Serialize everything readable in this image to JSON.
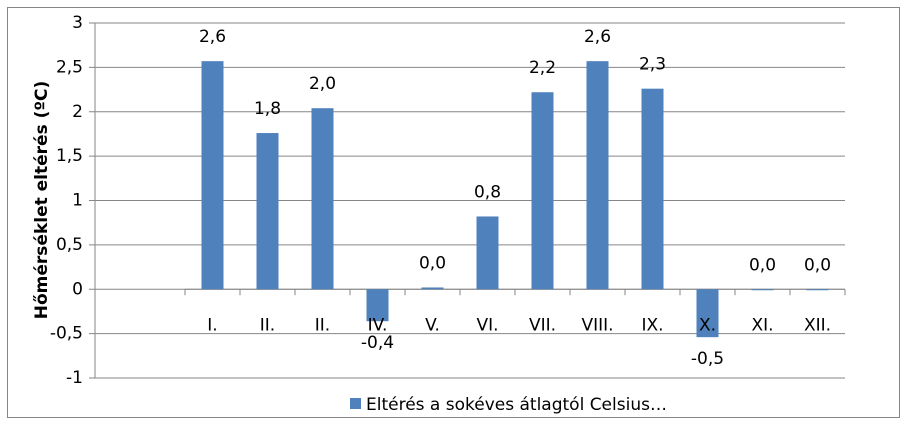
{
  "chart_data": {
    "type": "bar",
    "y_axis_label": "Hőmérséklet eltérés (ºC)",
    "categories": [
      "I.",
      "II.",
      "II.",
      "IV.",
      "V.",
      "VI.",
      "VII.",
      "VIII.",
      "IX.",
      "X.",
      "XI.",
      "XII."
    ],
    "series": [
      {
        "name": "Eltérés a sokéves átlagtól Celsius…",
        "color": "#4f81bd",
        "values": [
          2.57,
          1.76,
          2.04,
          -0.36,
          0.02,
          0.82,
          2.22,
          2.57,
          2.26,
          -0.54,
          0,
          0
        ],
        "value_labels": [
          "2,6",
          "1,8",
          "2,0",
          "-0,4",
          "0,0",
          "0,8",
          "2,2",
          "2,6",
          "2,3",
          "-0,5",
          "0,0",
          "0,0"
        ]
      }
    ],
    "ylim": [
      -1,
      3
    ],
    "yticks": [
      -1,
      {
        "value": -0.5,
        "label": "-0,5"
      },
      0,
      {
        "value": 0.5,
        "label": "0,5"
      },
      1,
      {
        "value": 1.5,
        "label": "1,5"
      },
      2,
      {
        "value": 2.5,
        "label": "2,5"
      },
      3
    ],
    "grid": true,
    "legend": "bottom"
  }
}
